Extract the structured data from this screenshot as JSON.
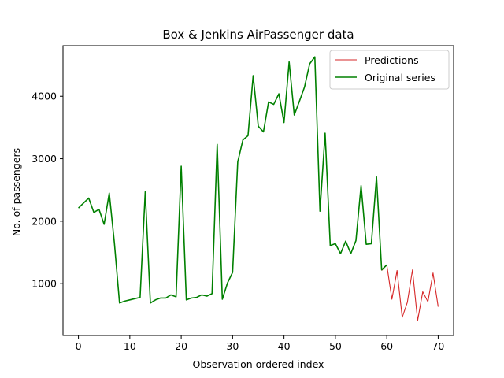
{
  "chart_data": {
    "type": "line",
    "title": "Box & Jenkins AirPassenger data",
    "xlabel": "Observation ordered index",
    "ylabel": "No. of passengers",
    "xlim": [
      -3,
      73
    ],
    "ylim": [
      170,
      4810
    ],
    "xticks": [
      0,
      10,
      20,
      30,
      40,
      50,
      60,
      70
    ],
    "yticks": [
      1000,
      2000,
      3000,
      4000
    ],
    "grid": false,
    "legend_position": "top-right",
    "colors": {
      "predictions": "#d62728",
      "original": "#008000"
    },
    "series": [
      {
        "name": "Predictions",
        "color": "#d62728",
        "x": [
          59,
          60,
          61,
          62,
          63,
          64,
          65,
          66,
          67,
          68,
          69,
          70
        ],
        "y": [
          1210,
          1300,
          750,
          1210,
          460,
          700,
          1220,
          410,
          870,
          710,
          1170,
          630
        ]
      },
      {
        "name": "Original series",
        "color": "#008000",
        "x": [
          0,
          1,
          2,
          3,
          4,
          5,
          6,
          7,
          8,
          9,
          10,
          11,
          12,
          13,
          14,
          15,
          16,
          17,
          18,
          19,
          20,
          21,
          22,
          23,
          24,
          25,
          26,
          27,
          28,
          29,
          30,
          31,
          32,
          33,
          34,
          35,
          36,
          37,
          38,
          39,
          40,
          41,
          42,
          43,
          44,
          45,
          46,
          47,
          48,
          49,
          50,
          51,
          52,
          53,
          54,
          55,
          56,
          57,
          58,
          59,
          60
        ],
        "y": [
          2210,
          2290,
          2370,
          2140,
          2190,
          1950,
          2450,
          1650,
          690,
          720,
          740,
          760,
          780,
          2470,
          690,
          740,
          770,
          770,
          820,
          790,
          2880,
          740,
          770,
          780,
          820,
          800,
          840,
          3230,
          750,
          1010,
          1180,
          2950,
          3300,
          3370,
          4330,
          3520,
          3430,
          3910,
          3870,
          4040,
          3580,
          4550,
          3700,
          3920,
          4150,
          4520,
          4630,
          2160,
          3410,
          1610,
          1640,
          1480,
          1680,
          1480,
          1690,
          2570,
          1630,
          1640,
          2710,
          1220,
          1300
        ]
      }
    ]
  }
}
